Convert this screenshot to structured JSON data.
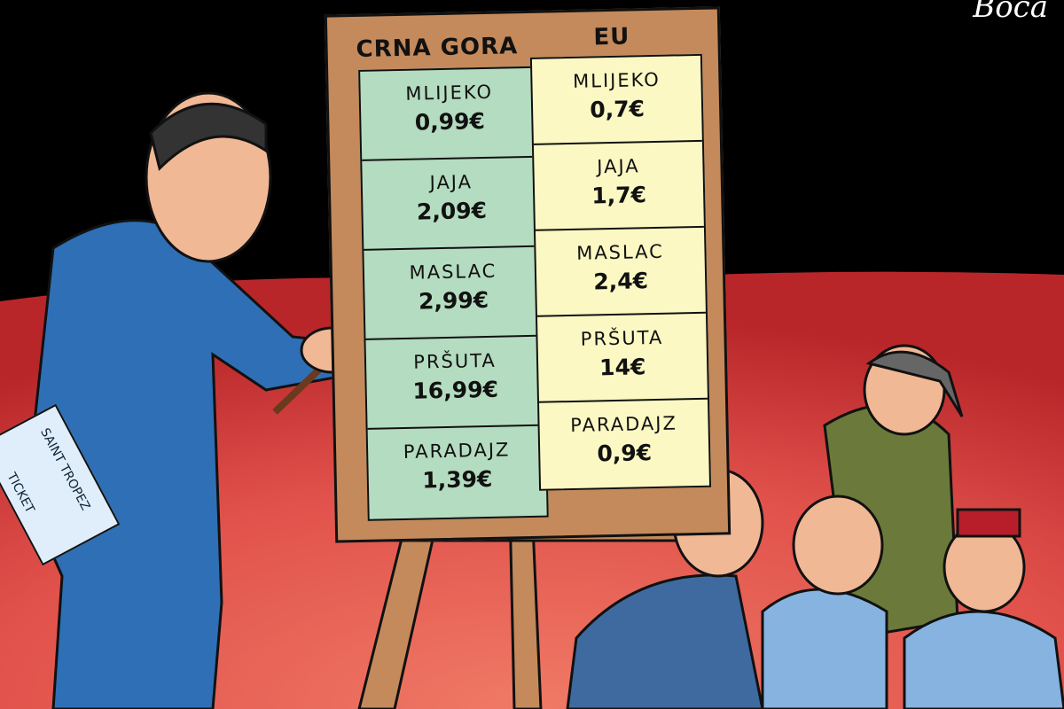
{
  "signature": "Boca",
  "board": {
    "headers": {
      "left": "CRNA GORA",
      "right": "EU"
    },
    "montenegro": [
      {
        "item": "MLIJEKO",
        "price": "0,99€"
      },
      {
        "item": "JAJA",
        "price": "2,09€"
      },
      {
        "item": "MASLAC",
        "price": "2,99€"
      },
      {
        "item": "PRŠUTA",
        "price": "16,99€"
      },
      {
        "item": "PARADAJZ",
        "price": "1,39€"
      }
    ],
    "eu": [
      {
        "item": "MLIJEKO",
        "price": "0,7€"
      },
      {
        "item": "JAJA",
        "price": "1,7€"
      },
      {
        "item": "MASLAC",
        "price": "2,4€"
      },
      {
        "item": "PRŠUTA",
        "price": "14€"
      },
      {
        "item": "PARADAJZ",
        "price": "0,9€"
      }
    ]
  },
  "ticket": {
    "line1": "SAINT TROPEZ",
    "line2": "TICKET"
  },
  "colors": {
    "background": "#000000",
    "ground": "#e0504a",
    "board_frame": "#c48a5c",
    "montenegro_panel": "#b4dcc0",
    "eu_panel": "#fbf8c4",
    "suit": "#2f6fb5"
  }
}
